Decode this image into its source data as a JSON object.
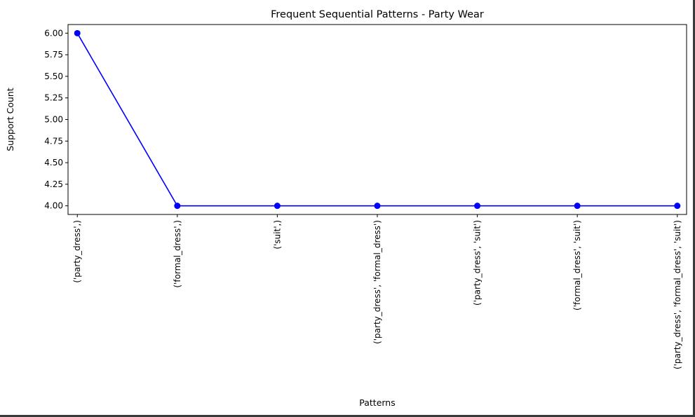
{
  "chart_data": {
    "type": "line",
    "title": "Frequent Sequential Patterns - Party Wear",
    "xlabel": "Patterns",
    "ylabel": "Support Count",
    "categories": [
      "('party_dress',)",
      "('formal_dress',)",
      "('suit',)",
      "('party_dress', 'formal_dress')",
      "('party_dress', 'suit')",
      "('formal_dress', 'suit')",
      "('party_dress', 'formal_dress', 'suit')"
    ],
    "series": [
      {
        "values": [
          6,
          4,
          4,
          4,
          4,
          4,
          4
        ],
        "color": "#0000ff",
        "marker": "circle"
      }
    ],
    "ylim": [
      3.9,
      6.1
    ],
    "yticks": [
      4.0,
      4.25,
      4.5,
      4.75,
      5.0,
      5.25,
      5.5,
      5.75,
      6.0
    ],
    "ytick_labels": [
      "4.00",
      "4.25",
      "4.50",
      "4.75",
      "5.00",
      "5.25",
      "5.50",
      "5.75",
      "6.00"
    ],
    "grid": false,
    "legend": "none"
  }
}
